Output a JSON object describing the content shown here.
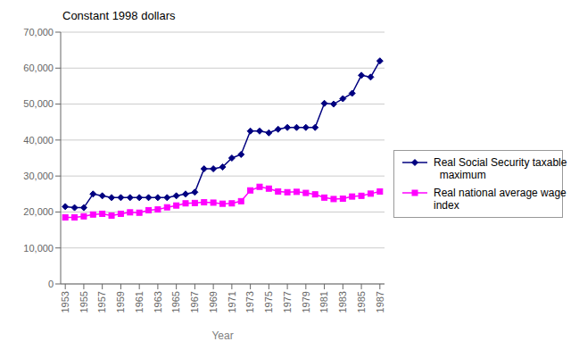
{
  "chart_data": {
    "type": "line",
    "title": "Constant 1998 dollars",
    "xlabel": "Year",
    "x": [
      1953,
      1954,
      1955,
      1956,
      1957,
      1958,
      1959,
      1960,
      1961,
      1962,
      1963,
      1964,
      1965,
      1966,
      1967,
      1968,
      1969,
      1970,
      1971,
      1972,
      1973,
      1974,
      1975,
      1976,
      1977,
      1978,
      1979,
      1980,
      1981,
      1982,
      1983,
      1984,
      1985,
      1986,
      1987
    ],
    "series": [
      {
        "name": "Real Social Security taxable\n  maximum",
        "color": "#000080",
        "marker": "diamond",
        "values": [
          21500,
          21200,
          21200,
          25000,
          24500,
          24000,
          24000,
          24000,
          24000,
          24000,
          24000,
          24000,
          24500,
          25000,
          25500,
          32000,
          32000,
          32500,
          35000,
          36000,
          42500,
          42500,
          42000,
          43000,
          43500,
          43500,
          43500,
          43500,
          50200,
          50000,
          51500,
          53000,
          58000,
          57500,
          62000
        ]
      },
      {
        "name": "Real national average wage\nindex",
        "color": "#FF00FF",
        "marker": "square",
        "values": [
          18500,
          18500,
          18800,
          19300,
          19500,
          19000,
          19500,
          19900,
          19800,
          20500,
          20700,
          21300,
          21800,
          22400,
          22500,
          22700,
          22600,
          22300,
          22400,
          23000,
          26000,
          27000,
          26500,
          25700,
          25500,
          25600,
          25300,
          24900,
          24000,
          23600,
          23700,
          24300,
          24500,
          25100,
          25700
        ]
      }
    ],
    "xlim": [
      1952.5,
      1987.5
    ],
    "xticks": [
      1953,
      1955,
      1957,
      1959,
      1961,
      1963,
      1965,
      1967,
      1969,
      1971,
      1973,
      1975,
      1977,
      1979,
      1981,
      1983,
      1985,
      1987
    ],
    "ylim": [
      0,
      70000
    ],
    "yticks": [
      0,
      {
        "value": 10000,
        "label": "10,000"
      },
      {
        "value": 20000,
        "label": "20,000"
      },
      {
        "value": 30000,
        "label": "30,000"
      },
      {
        "value": 40000,
        "label": "40,000"
      },
      {
        "value": 50000,
        "label": "50,000"
      },
      {
        "value": 60000,
        "label": "60,000"
      },
      {
        "value": 70000,
        "label": "70,000"
      }
    ],
    "grid": "y",
    "legend": "right"
  }
}
